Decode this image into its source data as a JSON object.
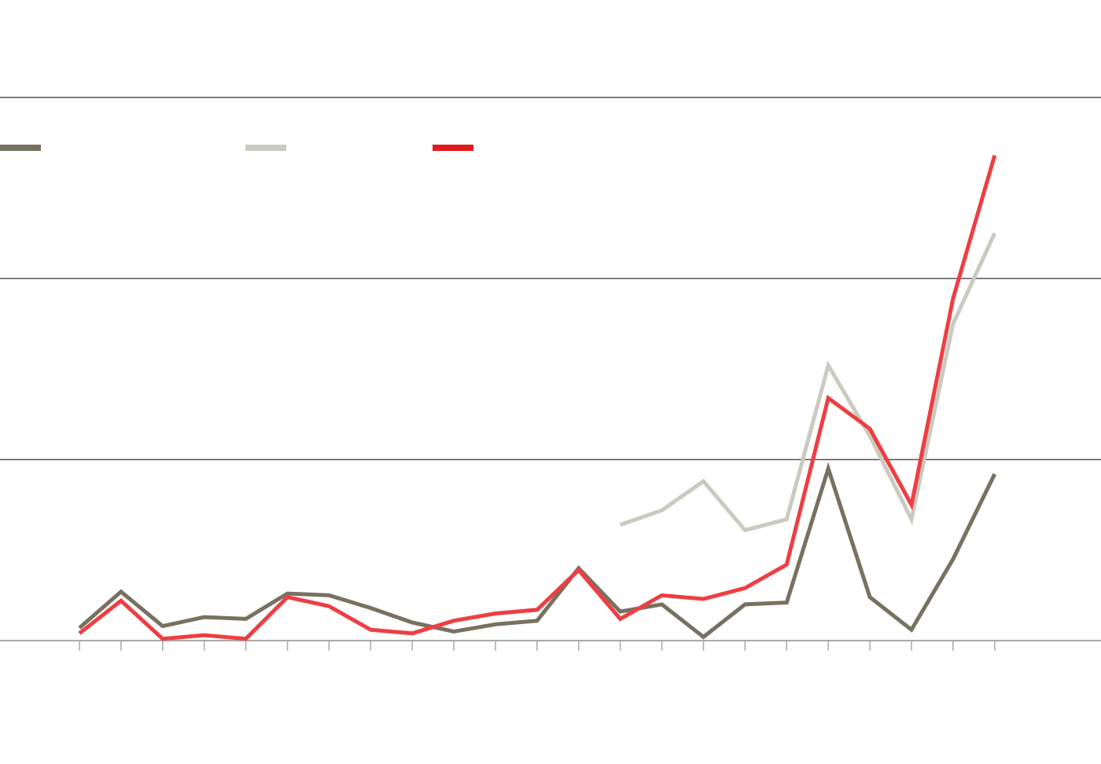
{
  "chart_data": {
    "type": "line",
    "title": "",
    "xlabel": "",
    "ylabel": "",
    "grid": true,
    "legend_placement": "top-left",
    "ylim": [
      0,
      300
    ],
    "gridlines": [
      0,
      100,
      200,
      300
    ],
    "x": [
      1,
      2,
      3,
      4,
      5,
      6,
      7,
      8,
      9,
      10,
      11,
      12,
      13,
      14,
      15,
      16,
      17,
      18,
      19,
      20,
      21,
      22,
      23
    ],
    "series": [
      {
        "color": "#777160",
        "values": [
          7,
          27,
          8,
          13,
          12,
          26,
          25,
          18,
          10,
          5,
          9,
          11,
          40,
          16,
          20,
          2,
          20,
          21,
          95,
          24,
          6,
          45,
          92
        ]
      },
      {
        "color": "#cbcac0",
        "values": [
          null,
          null,
          null,
          null,
          null,
          null,
          null,
          null,
          null,
          null,
          null,
          null,
          null,
          64,
          72,
          88,
          61,
          67,
          152,
          113,
          67,
          175,
          225
        ]
      },
      {
        "color": "#ef3e42",
        "values": [
          4,
          22,
          1,
          3,
          1,
          24,
          19,
          6,
          4,
          11,
          15,
          17,
          39,
          12,
          25,
          23,
          29,
          42,
          134,
          117,
          75,
          189,
          268
        ]
      }
    ],
    "legend_colors": [
      "#777160",
      "#cbcac0",
      "#e31a1c"
    ],
    "gridline_color": "#555555",
    "axis_color": "#aaaaaa"
  }
}
